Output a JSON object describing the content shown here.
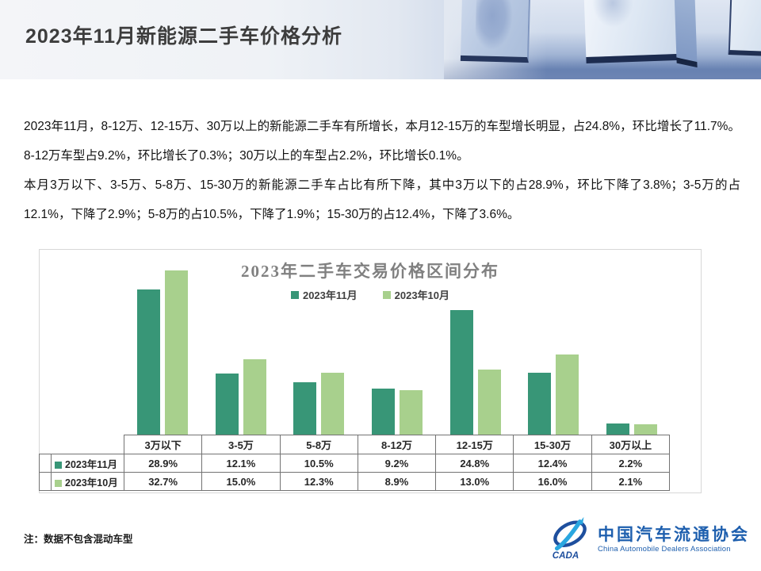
{
  "header": {
    "title": "2023年11月新能源二手车价格分析"
  },
  "paragraphs": [
    "2023年11月，8-12万、12-15万、30万以上的新能源二手车有所增长，本月12-15万的车型增长明显，占24.8%，环比增长了11.7%。8-12万车型占9.2%，环比增长了0.3%；30万以上的车型占2.2%，环比增长0.1%。",
    "本月3万以下、3-5万、5-8万、15-30万的新能源二手车占比有所下降，其中3万以下的占28.9%，环比下降了3.8%；3-5万的占12.1%，下降了2.9%；5-8万的占10.5%，下降了1.9%；15-30万的占12.4%，下降了3.6%。"
  ],
  "chart_data": {
    "type": "bar",
    "title": "2023年二手车交易价格区间分布",
    "categories": [
      "3万以下",
      "3-5万",
      "5-8万",
      "8-12万",
      "12-15万",
      "15-30万",
      "30万以上"
    ],
    "series": [
      {
        "name": "2023年11月",
        "color": "#389677",
        "values": [
          28.9,
          12.1,
          10.5,
          9.2,
          24.8,
          12.4,
          2.2
        ]
      },
      {
        "name": "2023年10月",
        "color": "#A8D08D",
        "values": [
          32.7,
          15.0,
          12.3,
          8.9,
          13.0,
          16.0,
          2.1
        ]
      }
    ],
    "unit": "%",
    "ylim": [
      0,
      36
    ],
    "grid": false,
    "legend_position": "top",
    "data_table_shown": true
  },
  "note": "注：数据不包含混动车型",
  "logo": {
    "cn": "中国汽车流通协会",
    "en": "China Automobile Dealers Association",
    "badge": "CADA",
    "blue_dark": "#1e4f9e",
    "blue_light": "#2aa7e0"
  }
}
